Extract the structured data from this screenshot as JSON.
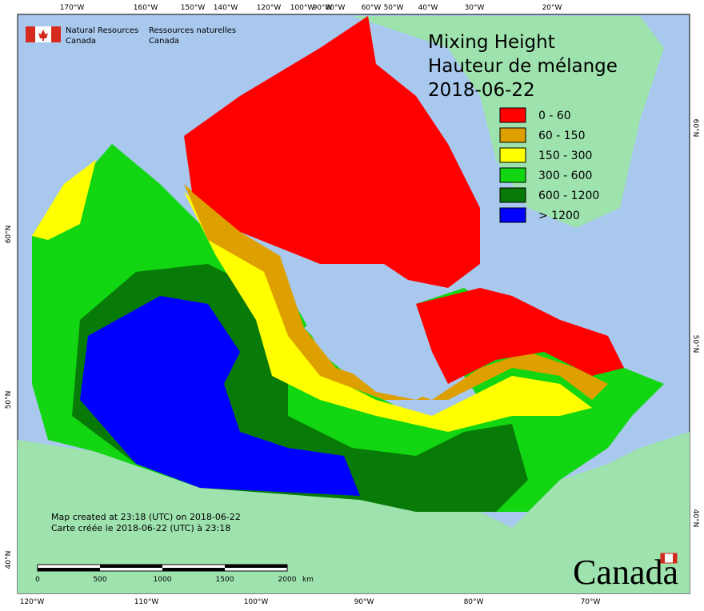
{
  "agency": {
    "en": "Natural Resources\nCanada",
    "en_lines": [
      "Natural Resources",
      "Canada"
    ],
    "fr_lines": [
      "Ressources naturelles",
      "Canada"
    ]
  },
  "title_lines": [
    "Mixing Height",
    "Hauteur de mélange",
    "2018-06-22"
  ],
  "legend": [
    {
      "label": "0 - 60",
      "color": "#ff0000"
    },
    {
      "label": "60 - 150",
      "color": "#dda000"
    },
    {
      "label": "150 - 300",
      "color": "#ffff00"
    },
    {
      "label": "300 - 600",
      "color": "#11d611"
    },
    {
      "label": "600 - 1200",
      "color": "#087a08"
    },
    {
      "label": "> 1200",
      "color": "#0000ff"
    }
  ],
  "top_longitudes": [
    "170°W",
    "160°W",
    "150°W",
    "140°W",
    "120°W",
    "100°W",
    "90°W",
    "80°W",
    "60°W",
    "50°W",
    "40°W",
    "30°W",
    "20°W"
  ],
  "bottom_longitudes": [
    "120°W",
    "110°W",
    "100°W",
    "90°W",
    "80°W",
    "70°W"
  ],
  "left_latitudes": [
    "60°N",
    "50°N",
    "40°N"
  ],
  "right_latitudes": [
    "60°N",
    "50°N",
    "40°N"
  ],
  "credit_lines": [
    "Map created at 23:18 (UTC) on 2018-06-22",
    "Carte créée le 2018-06-22 (UTC) à 23:18"
  ],
  "scale": {
    "ticks": [
      0,
      500,
      1000,
      1500,
      2000
    ],
    "unit": "km"
  },
  "wordmark": "Canada"
}
